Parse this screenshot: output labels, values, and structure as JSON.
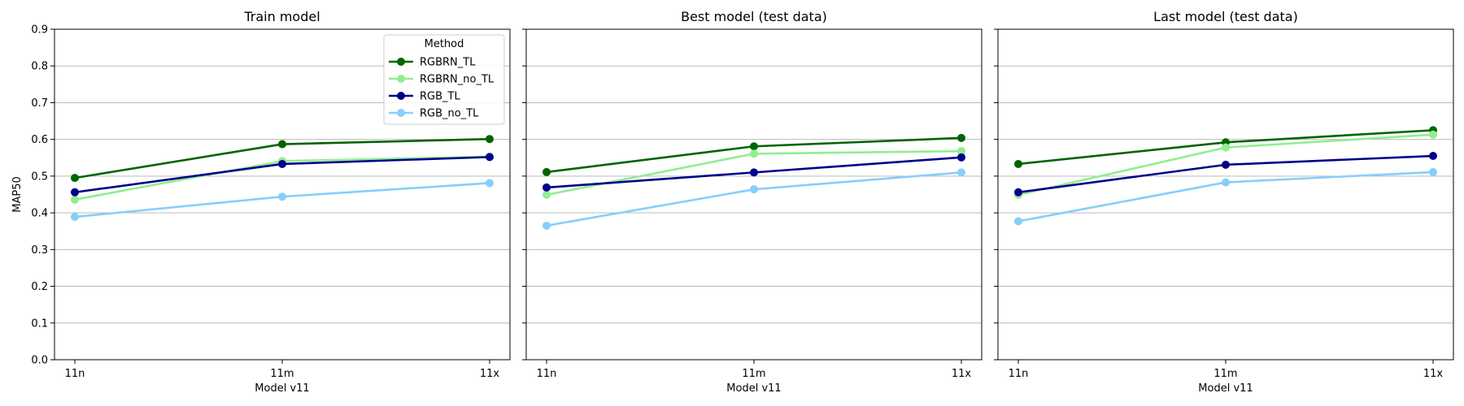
{
  "chart_data": [
    {
      "type": "line",
      "title": "Train model",
      "xlabel": "Model v11",
      "ylabel": "MAP50",
      "categories": [
        "11n",
        "11m",
        "11x"
      ],
      "ylim": [
        0,
        0.9
      ],
      "yticks": [
        "0.0",
        "0.1",
        "0.2",
        "0.3",
        "0.4",
        "0.5",
        "0.6",
        "0.7",
        "0.8",
        "0.9"
      ],
      "grid": "y",
      "legend": "top-right",
      "legend_title": "Method",
      "series": [
        {
          "name": "RGBRN_TL",
          "color": "#006400",
          "values": [
            0.495,
            0.587,
            0.601
          ]
        },
        {
          "name": "RGBRN_no_TL",
          "color": "#90ee90",
          "values": [
            0.436,
            0.541,
            0.553
          ]
        },
        {
          "name": "RGB_TL",
          "color": "#00008b",
          "values": [
            0.456,
            0.533,
            0.552
          ]
        },
        {
          "name": "RGB_no_TL",
          "color": "#87cefa",
          "values": [
            0.389,
            0.444,
            0.481
          ]
        }
      ]
    },
    {
      "type": "line",
      "title": "Best model (test data)",
      "xlabel": "Model v11",
      "ylabel": "",
      "categories": [
        "11n",
        "11m",
        "11x"
      ],
      "ylim": [
        0,
        0.9
      ],
      "grid": "y",
      "series": [
        {
          "name": "RGBRN_TL",
          "color": "#006400",
          "values": [
            0.511,
            0.581,
            0.604
          ]
        },
        {
          "name": "RGBRN_no_TL",
          "color": "#90ee90",
          "values": [
            0.449,
            0.561,
            0.568
          ]
        },
        {
          "name": "RGB_TL",
          "color": "#00008b",
          "values": [
            0.469,
            0.51,
            0.551
          ]
        },
        {
          "name": "RGB_no_TL",
          "color": "#87cefa",
          "values": [
            0.365,
            0.464,
            0.51
          ]
        }
      ]
    },
    {
      "type": "line",
      "title": "Last model (test data)",
      "xlabel": "Model v11",
      "ylabel": "",
      "categories": [
        "11n",
        "11m",
        "11x"
      ],
      "ylim": [
        0,
        0.9
      ],
      "grid": "y",
      "series": [
        {
          "name": "RGBRN_TL",
          "color": "#006400",
          "values": [
            0.533,
            0.592,
            0.625
          ]
        },
        {
          "name": "RGBRN_no_TL",
          "color": "#90ee90",
          "values": [
            0.449,
            0.578,
            0.613
          ]
        },
        {
          "name": "RGB_TL",
          "color": "#00008b",
          "values": [
            0.456,
            0.531,
            0.555
          ]
        },
        {
          "name": "RGB_no_TL",
          "color": "#87cefa",
          "values": [
            0.377,
            0.483,
            0.511
          ]
        }
      ]
    }
  ]
}
